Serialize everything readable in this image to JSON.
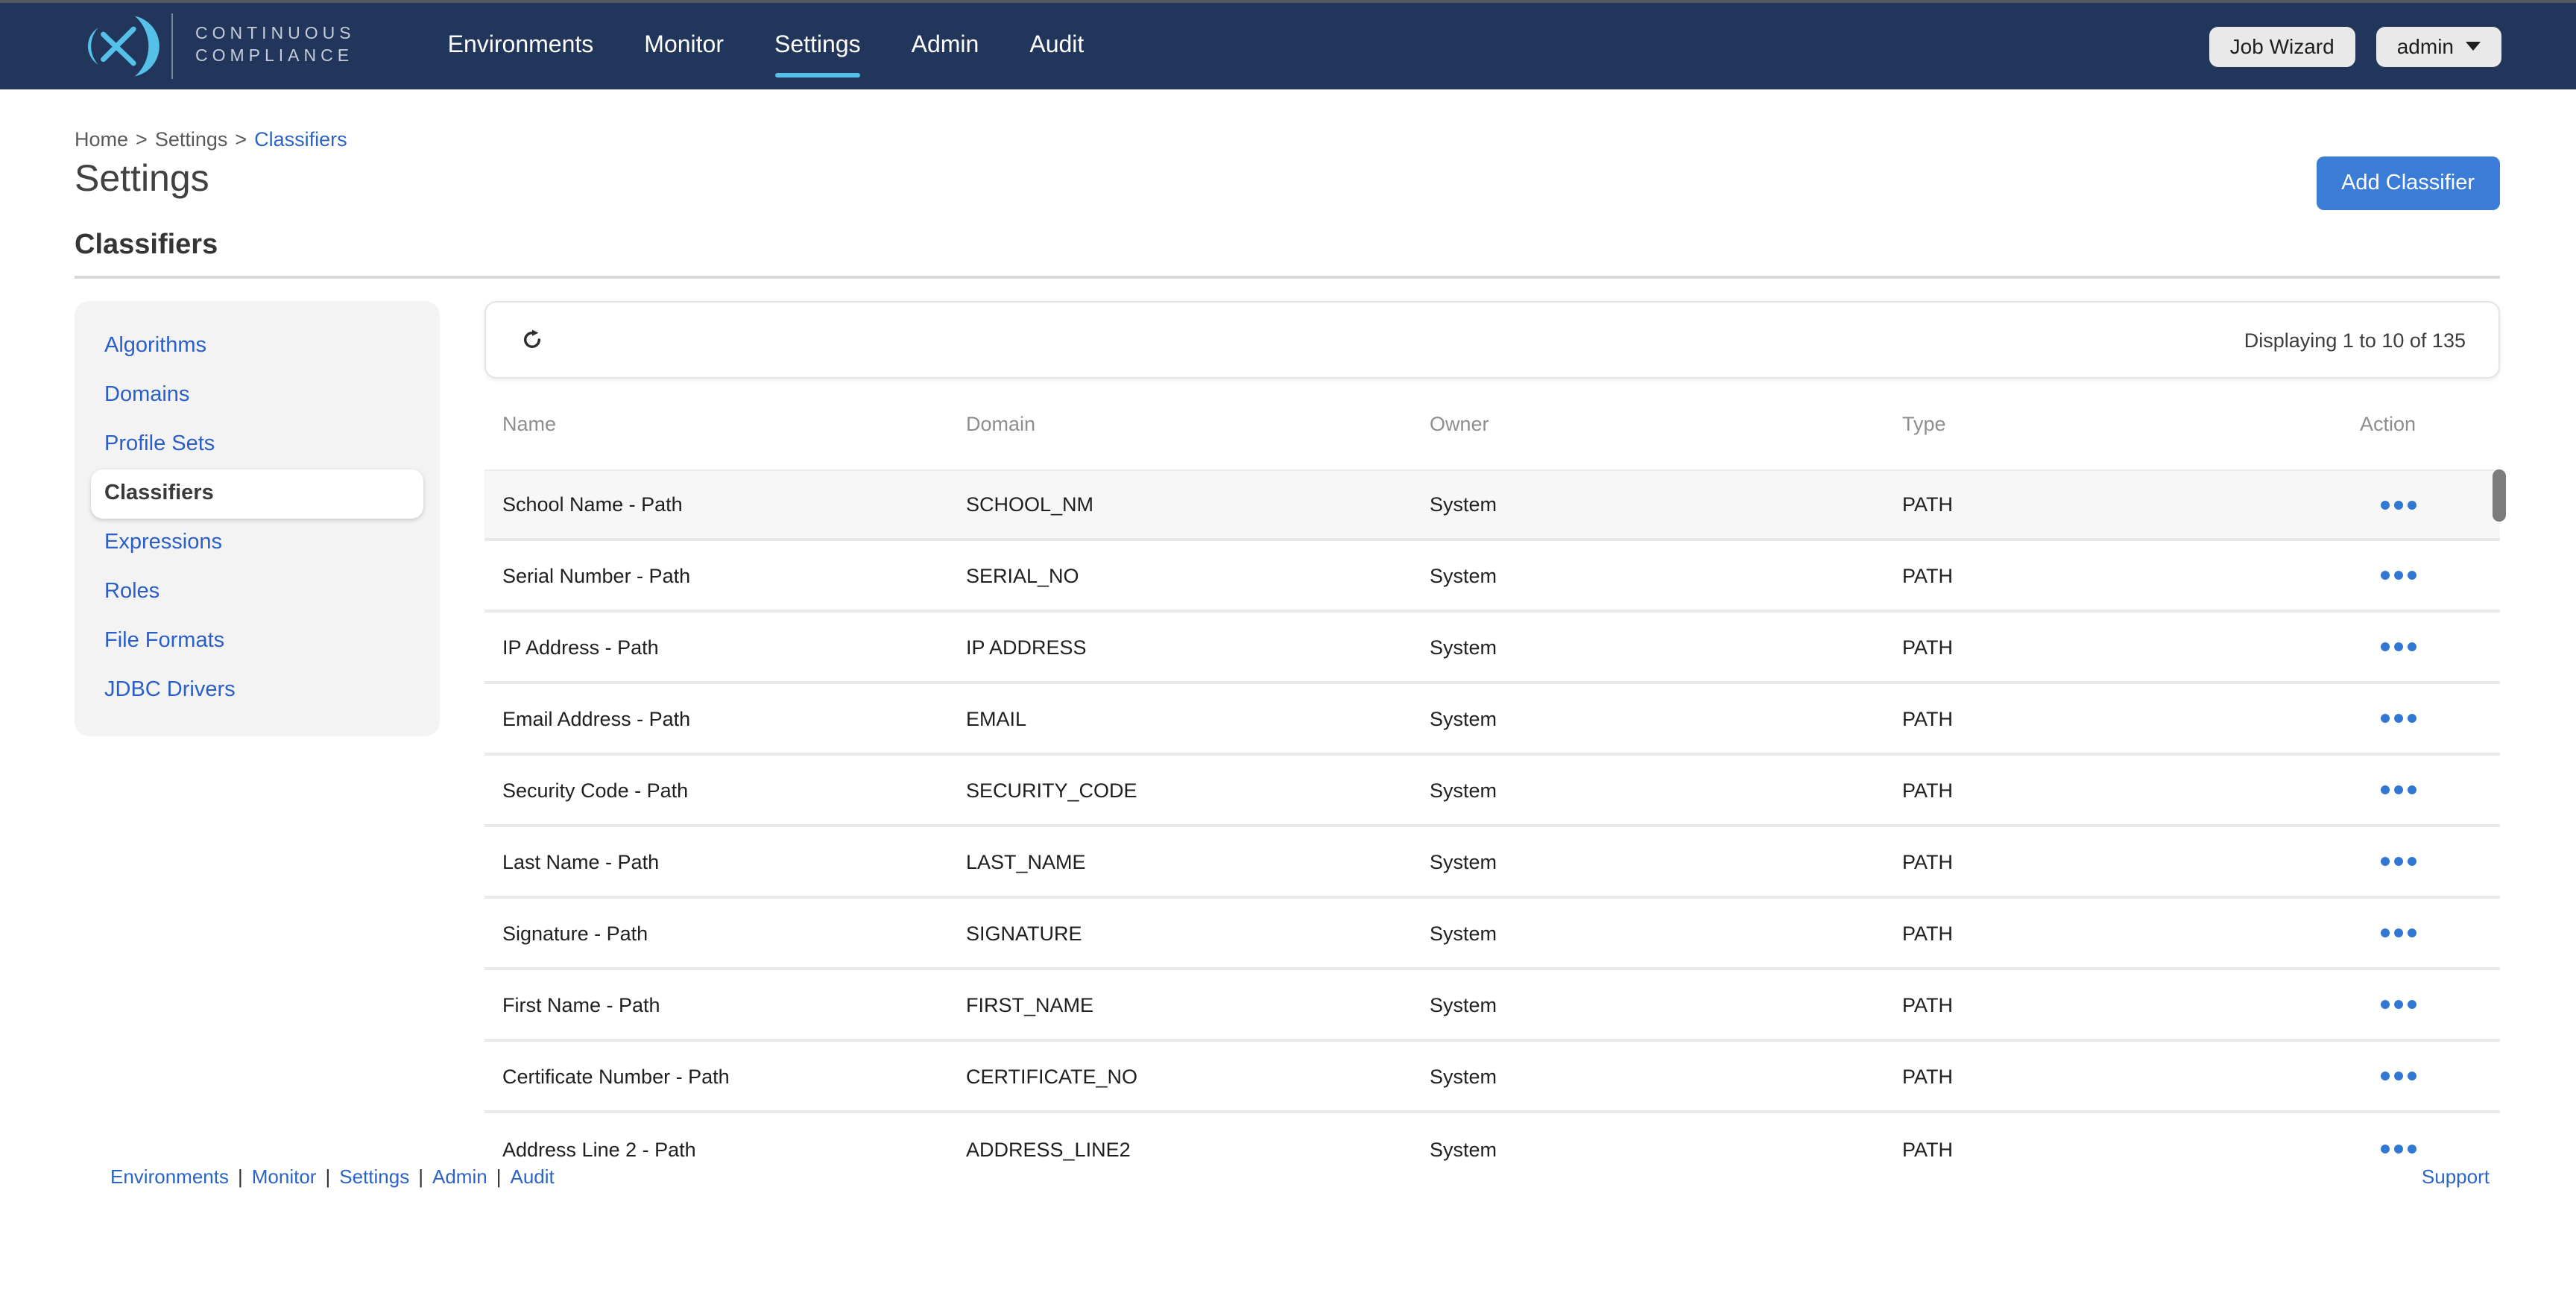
{
  "navbar": {
    "logo_line1": "CONTINUOUS",
    "logo_line2": "COMPLIANCE",
    "items": [
      {
        "label": "Environments",
        "active": false
      },
      {
        "label": "Monitor",
        "active": false
      },
      {
        "label": "Settings",
        "active": true
      },
      {
        "label": "Admin",
        "active": false
      },
      {
        "label": "Audit",
        "active": false
      }
    ],
    "job_wizard_label": "Job Wizard",
    "user_label": "admin"
  },
  "breadcrumb": {
    "separator": ">",
    "items": [
      {
        "label": "Home",
        "current": false
      },
      {
        "label": "Settings",
        "current": false
      },
      {
        "label": "Classifiers",
        "current": true
      }
    ]
  },
  "page": {
    "title": "Settings",
    "section_heading": "Classifiers",
    "add_button_label": "Add Classifier"
  },
  "sidebar": {
    "items": [
      {
        "label": "Algorithms",
        "active": false
      },
      {
        "label": "Domains",
        "active": false
      },
      {
        "label": "Profile Sets",
        "active": false
      },
      {
        "label": "Classifiers",
        "active": true
      },
      {
        "label": "Expressions",
        "active": false
      },
      {
        "label": "Roles",
        "active": false
      },
      {
        "label": "File Formats",
        "active": false
      },
      {
        "label": "JDBC Drivers",
        "active": false
      }
    ]
  },
  "table": {
    "status_text": "Displaying 1 to 10 of 135",
    "columns": [
      "Name",
      "Domain",
      "Owner",
      "Type",
      "Action"
    ],
    "rows": [
      {
        "name": "School Name - Path",
        "domain": "SCHOOL_NM",
        "owner": "System",
        "type": "PATH"
      },
      {
        "name": "Serial Number - Path",
        "domain": "SERIAL_NO",
        "owner": "System",
        "type": "PATH"
      },
      {
        "name": "IP Address - Path",
        "domain": "IP ADDRESS",
        "owner": "System",
        "type": "PATH"
      },
      {
        "name": "Email Address - Path",
        "domain": "EMAIL",
        "owner": "System",
        "type": "PATH"
      },
      {
        "name": "Security Code - Path",
        "domain": "SECURITY_CODE",
        "owner": "System",
        "type": "PATH"
      },
      {
        "name": "Last Name - Path",
        "domain": "LAST_NAME",
        "owner": "System",
        "type": "PATH"
      },
      {
        "name": "Signature - Path",
        "domain": "SIGNATURE",
        "owner": "System",
        "type": "PATH"
      },
      {
        "name": "First Name - Path",
        "domain": "FIRST_NAME",
        "owner": "System",
        "type": "PATH"
      },
      {
        "name": "Certificate Number - Path",
        "domain": "CERTIFICATE_NO",
        "owner": "System",
        "type": "PATH"
      },
      {
        "name": "Address Line 2 - Path",
        "domain": "ADDRESS_LINE2",
        "owner": "System",
        "type": "PATH"
      }
    ]
  },
  "footer": {
    "links": [
      "Environments",
      "Monitor",
      "Settings",
      "Admin",
      "Audit"
    ],
    "separator": "|",
    "support_label": "Support"
  },
  "icons": {
    "refresh": "clockwise-open-circle-arrow",
    "actions": "three-horizontal-dots",
    "caret": "down-triangle"
  },
  "colors": {
    "navbar_bg": "#21365A",
    "logo_accent": "#55C1E9",
    "active_tab_underline": "#55C1E9",
    "link_blue": "#2B63C6",
    "primary_button_bg": "#3A7CD6",
    "action_dots": "#3278D2",
    "sidebar_bg": "#F3F3F4",
    "highlighted_row_bg": "#F7F7F8",
    "scroll_thumb": "#7C7C7C"
  }
}
